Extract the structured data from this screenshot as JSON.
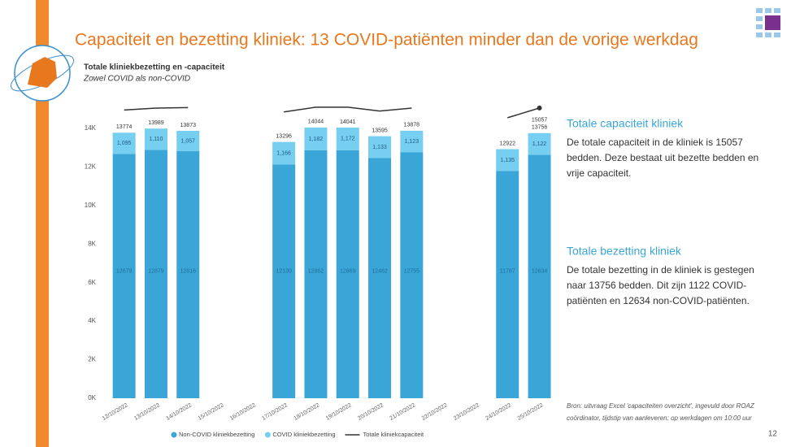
{
  "title": "Capaciteit en bezetting kliniek: 13 COVID-patiënten minder dan de vorige werkdag",
  "chart_data": {
    "type": "bar",
    "stacked": true,
    "title": "Totale kliniekbezetting en -capaciteit",
    "subtitle": "Zowel COVID als non-COVID",
    "categories": [
      "12/10/2022",
      "13/10/2022",
      "14/10/2022",
      "15/10/2022",
      "16/10/2022",
      "17/10/2022",
      "18/10/2022",
      "19/10/2022",
      "20/10/2022",
      "21/10/2022",
      "22/10/2022",
      "23/10/2022",
      "24/10/2022",
      "25/10/2022"
    ],
    "series": [
      {
        "name": "Non-COVID kliniekbezetting",
        "color": "#3aa6d8",
        "values": [
          12679,
          12879,
          12816,
          null,
          null,
          12130,
          12862,
          12869,
          12462,
          12755,
          null,
          null,
          11787,
          12634
        ]
      },
      {
        "name": "COVID kliniekbezetting",
        "color": "#76cef0",
        "values": [
          1095,
          1110,
          1057,
          null,
          null,
          1166,
          1182,
          1172,
          1133,
          1123,
          null,
          null,
          1135,
          1122
        ],
        "value_labels": [
          "1,095",
          "1,110",
          "1,057",
          null,
          null,
          "1,166",
          "1,182",
          "1,172",
          "1,133",
          "1,123",
          null,
          null,
          "1,135",
          "1,122"
        ]
      },
      {
        "name": "Totale kliniekcapaciteit",
        "color": "#333333",
        "type": "line",
        "values": [
          14950,
          15050,
          15080,
          null,
          null,
          14850,
          15100,
          15100,
          14900,
          15050,
          null,
          null,
          14550,
          15057
        ]
      }
    ],
    "totals": [
      13774,
      13989,
      13873,
      null,
      null,
      13296,
      14044,
      14041,
      13595,
      13878,
      null,
      null,
      12922,
      13756
    ],
    "ylim": [
      0,
      15600
    ],
    "yticks": [
      {
        "value": 0,
        "label": "0K"
      },
      {
        "value": 2000,
        "label": "2K"
      },
      {
        "value": 4000,
        "label": "4K"
      },
      {
        "value": 6000,
        "label": "6K"
      },
      {
        "value": 8000,
        "label": "8K"
      },
      {
        "value": 10000,
        "label": "10K"
      },
      {
        "value": 12000,
        "label": "12K"
      },
      {
        "value": 14000,
        "label": "14K"
      }
    ],
    "legend": "bottom"
  },
  "panels": [
    {
      "heading": "Totale capaciteit kliniek",
      "lines": [
        "De totale capaciteit in de kliniek is 15057",
        "bedden. Deze bestaat uit bezette bedden en",
        "vrije capaciteit."
      ]
    },
    {
      "heading": "Totale bezetting kliniek",
      "lines": [
        "De totale bezetting in de kliniek is gestegen",
        "naar 13756 bedden. Dit zijn 1122 COVID-",
        "patiënten en 12634 non-COVID-patiënten."
      ]
    }
  ],
  "source": [
    "Bron: uitvraag Excel 'capaciteiten overzicht', ingevuld door ROAZ",
    "coördinator, tijdstip van aanleveren: op werkdagen om 10:00 uur"
  ],
  "page_number": 12
}
